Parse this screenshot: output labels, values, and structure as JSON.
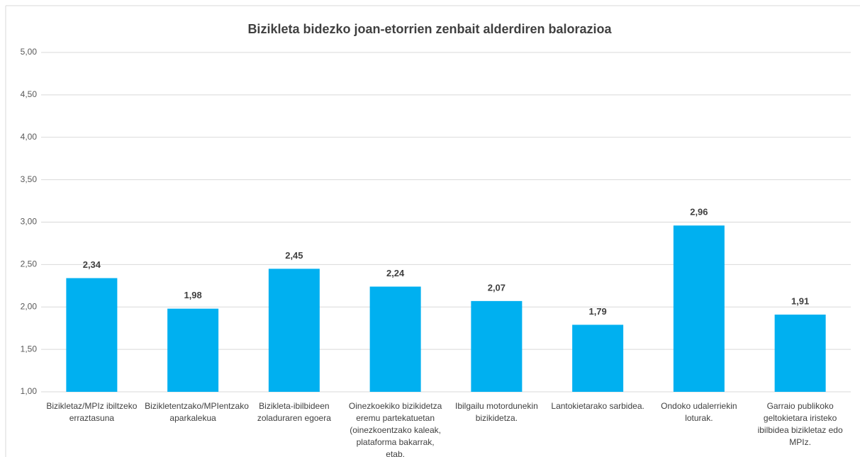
{
  "chart_data": {
    "type": "bar",
    "title": "Bizikleta bidezko joan-etorrien zenbait alderdiren balorazioa",
    "categories": [
      "Bizikletaz/MPIz ibiltzeko erraztasuna",
      "Bizikletentzako/MPIentzako aparkalekua",
      "Bizikleta-ibilbideen zoladuraren egoera",
      "Oinezkoekiko bizikidetza eremu partekatuetan (oinezkoentzako kaleak, plataforma bakarrak, etab.",
      "Ibilgailu motordunekin bizikidetza.",
      "Lantokietarako sarbidea.",
      "Ondoko udalerriekin loturak.",
      "Garraio publikoko geltokietara iristeko ibilbidea bizikletaz edo MPIz."
    ],
    "values": [
      2.34,
      1.98,
      2.45,
      2.24,
      2.07,
      1.79,
      2.96,
      1.91
    ],
    "value_labels": [
      "2,34",
      "1,98",
      "2,45",
      "2,24",
      "2,07",
      "1,79",
      "2,96",
      "1,91"
    ],
    "color": "#00b0f0",
    "ylim": [
      1,
      5
    ],
    "yticks": [
      {
        "value": 1,
        "label": "1,00"
      },
      {
        "value": 1.5,
        "label": "1,50"
      },
      {
        "value": 2,
        "label": "2,00"
      },
      {
        "value": 2.5,
        "label": "2,50"
      },
      {
        "value": 3,
        "label": "3,00"
      },
      {
        "value": 3.5,
        "label": "3,50"
      },
      {
        "value": 4,
        "label": "4,00"
      },
      {
        "value": 4.5,
        "label": "4,50"
      },
      {
        "value": 5,
        "label": "5,00"
      }
    ],
    "grid": true
  }
}
